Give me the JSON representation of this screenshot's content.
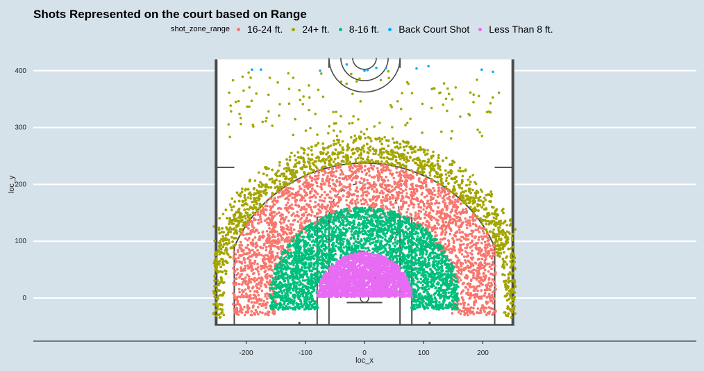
{
  "chart_data": {
    "type": "scatter",
    "title": "Shots Represented on the court based on Range",
    "xlabel": "loc_x",
    "ylabel": "loc_y",
    "xlim": [
      -270,
      280
    ],
    "ylim": [
      -75,
      420
    ],
    "x_ticks": [
      -200,
      -100,
      0,
      100,
      200
    ],
    "y_ticks": [
      0,
      100,
      200,
      300,
      400
    ],
    "grid": true,
    "legend": {
      "title": "shot_zone_range",
      "placement": "top",
      "entries": [
        {
          "label": "16-24 ft.",
          "color": "#f8766d"
        },
        {
          "label": "24+ ft.",
          "color": "#a3a500"
        },
        {
          "label": "8-16 ft.",
          "color": "#00bf7d"
        },
        {
          "label": "Back Court Shot",
          "color": "#00b0f6"
        },
        {
          "label": "Less Than 8 ft.",
          "color": "#e76bf3"
        }
      ]
    },
    "series": [
      {
        "name": "Less Than 8 ft.",
        "color": "#e76bf3",
        "region": {
          "r_min": 0,
          "r_max": 80,
          "x_min": -80,
          "x_max": 80,
          "y_min": 2,
          "y_max": 80,
          "count": 2600
        }
      },
      {
        "name": "8-16 ft.",
        "color": "#00bf7d",
        "region": {
          "r_min": 80,
          "r_max": 160,
          "x_min": -160,
          "x_max": 160,
          "y_min": -20,
          "y_max": 160,
          "count": 3500
        }
      },
      {
        "name": "16-24 ft.",
        "color": "#f8766d",
        "region": {
          "r_min": 160,
          "r_max": 235,
          "x_min": -222,
          "x_max": 222,
          "y_min": -30,
          "y_max": 235,
          "count": 4300
        }
      },
      {
        "name": "24+ ft.",
        "color": "#a3a500",
        "region": {
          "r_min": 237,
          "r_max": 285,
          "x_min": -255,
          "x_max": 255,
          "y_min": -35,
          "y_max": 290,
          "count": 3300,
          "sparse_count": 130,
          "sparse_y_max": 400
        }
      },
      {
        "name": "Back Court Shot",
        "color": "#00b0f6",
        "points": [
          [
            -190,
            402
          ],
          [
            -175,
            402
          ],
          [
            -75,
            400
          ],
          [
            -30,
            411
          ],
          [
            0,
            400
          ],
          [
            5,
            401
          ],
          [
            20,
            405
          ],
          [
            36,
            404
          ],
          [
            88,
            404
          ],
          [
            108,
            408
          ],
          [
            198,
            402
          ],
          [
            217,
            398
          ]
        ]
      }
    ],
    "court_lines": "half court: baseline at y=-50, three-point arc radius 237.5, corner lines at x=±220, paint x from -80 to 80 up to y=142.5, free throw circle radius 60, restricted arc radius 40, half-court circle at y=422.5"
  }
}
